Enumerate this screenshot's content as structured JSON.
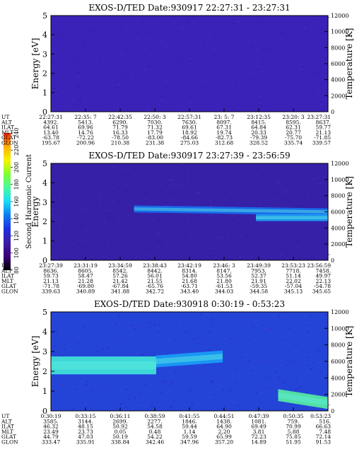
{
  "colorbar": {
    "label": "Second Harmonic Current",
    "ticks": [
      "80",
      "100",
      "120",
      "140",
      "160",
      "180",
      "200",
      "220",
      "240"
    ],
    "colors": [
      "#000000",
      "#3a007a",
      "#3c1ca8",
      "#2030e0",
      "#0e7cf2",
      "#17dcf8",
      "#48f8a0",
      "#80ff30",
      "#f4f400",
      "#ffb000",
      "#ff2800"
    ]
  },
  "row_labels": [
    "UT",
    "ALT",
    "ILAT",
    "MLT",
    "GLAT",
    "GLON"
  ],
  "chart_data": [
    {
      "type": "heatmap",
      "title": "EXOS-D/TED   Date:930917  22:27:31 - 23:27:31",
      "ylabel": "Energy [eV]",
      "ylabel_right": "Temperature [K]",
      "ylim": [
        0,
        5
      ],
      "yticks": [
        "0",
        "1",
        "2",
        "3",
        "4",
        "5"
      ],
      "y2lim": [
        0,
        12000
      ],
      "y2ticks": [
        "0",
        "2000",
        "4000",
        "6000",
        "8000",
        "10000",
        "12000"
      ],
      "background": "uniform ~100",
      "bands": [],
      "table": [
        [
          "22:27:31",
          "22:35: 7",
          "22:42:35",
          "22:50: 3",
          "22:57:31",
          "23: 5: 7",
          "23:12:35",
          "23:20: 3",
          "23:27:31"
        ],
        [
          "4392.",
          "5413.",
          "6290.",
          "7030.",
          "7630.",
          "8097.",
          "8415.",
          "8595.",
          "8637."
        ],
        [
          "64.61",
          "69.96",
          "71.79",
          "71.32",
          "69.61",
          "67.31",
          "64.84",
          "62.31",
          "59.77"
        ],
        [
          "13.40",
          "14.76",
          "16.33",
          "17.79",
          "18.92",
          "19.74",
          "20.33",
          "20.77",
          "21.13"
        ],
        [
          "-63.78",
          "-72.22",
          "-78.50",
          "-83.00",
          "-84.66",
          "-82.73",
          "-79.39",
          "-75.70",
          "-71.85"
        ],
        [
          "195.67",
          "200.96",
          "210.38",
          "231.38",
          "275.03",
          "312.68",
          "328.52",
          "335.74",
          "339.57"
        ]
      ]
    },
    {
      "type": "heatmap",
      "title": "EXOS-D/TED   Date:930917  23:27:39 - 23:56:59",
      "ylabel": "Energy",
      "ylabel_right": "Temperature [K]",
      "ylim": [
        0,
        5
      ],
      "yticks": [
        "0",
        "1",
        "2",
        "3",
        "4",
        "5"
      ],
      "y2lim": [
        0,
        12000
      ],
      "y2ticks": [
        "0",
        "2000",
        "4000",
        "6000",
        "8000",
        "10000",
        "12000"
      ],
      "background": "~100",
      "bands": [
        {
          "x": [
            0.3,
            1.0
          ],
          "y_center": [
            2.65,
            2.5
          ],
          "halfwidth": 0.18,
          "level": "~140"
        },
        {
          "x": [
            0.74,
            1.0
          ],
          "y_center": [
            2.2,
            2.2
          ],
          "halfwidth": 0.18,
          "level": "~150"
        }
      ],
      "table": [
        [
          "23:27:39",
          "23:31:19",
          "23:34:59",
          "23:38:43",
          "23:42:19",
          "23:46: 3",
          "23:49:39",
          "23:53:23",
          "23:56:59"
        ],
        [
          "8636.",
          "8605.",
          "8542.",
          "8442.",
          "8314.",
          "8147.",
          "7953.",
          "7718.",
          "7458."
        ],
        [
          "59.73",
          "58.47",
          "57.26",
          "56.01",
          "54.80",
          "53.56",
          "52.37",
          "51.14",
          "49.97"
        ],
        [
          "21.13",
          "21.28",
          "21.42",
          "21.55",
          "21.68",
          "21.80",
          "21.91",
          "22.02",
          "22.13"
        ],
        [
          "-71.78",
          "-69.80",
          "-67.84",
          "-65.76",
          "-63.71",
          "-61.53",
          "-59.35",
          "-57.04",
          "-54.78"
        ],
        [
          "339.63",
          "340.89",
          "341.88",
          "342.72",
          "343.40",
          "344.03",
          "344.58",
          "345.13",
          "345.65"
        ]
      ]
    },
    {
      "type": "heatmap",
      "title": "EXOS-D/TED   Date:930918  0:30:19 - 0:53:23",
      "ylabel": "Energy [eV]",
      "ylabel_right": "Temperature [K]",
      "ylim": [
        0,
        5
      ],
      "yticks": [
        "0",
        "1",
        "2",
        "3",
        "4",
        "5"
      ],
      "y2lim": [
        0,
        12000
      ],
      "y2ticks": [
        "0",
        "2000",
        "4000",
        "6000",
        "8000",
        "10000",
        "12000"
      ],
      "background": "~130",
      "bands": [
        {
          "x": [
            0.0,
            0.38
          ],
          "y_center": [
            2.3,
            2.3
          ],
          "halfwidth": 0.45,
          "level": "~170"
        },
        {
          "x": [
            0.38,
            0.62
          ],
          "y_center": [
            2.5,
            2.75
          ],
          "halfwidth": 0.3,
          "level": "~150"
        },
        {
          "x": [
            0.82,
            1.0
          ],
          "y_center": [
            0.8,
            0.4
          ],
          "halfwidth": 0.3,
          "level": "~180"
        }
      ],
      "table": [
        [
          "0:30:19",
          "0:33:15",
          "0:36:11",
          "0:38:59",
          "0:41:55",
          "0:44:51",
          "0:47:39",
          "0:50:35",
          "0:53:23"
        ],
        [
          "3585.",
          "3144.",
          "2699.",
          "2277.",
          "1846.",
          "1438.",
          "1081.",
          "759.",
          "516."
        ],
        [
          "46.32",
          "48.15",
          "50.92",
          "54.58",
          "59.44",
          "64.90",
          "69.49",
          "70.99",
          "66.63"
        ],
        [
          "23.49",
          "23.73",
          "0.05",
          "0.48",
          "1.14",
          "2.20",
          "3.81",
          "5.88",
          "7.48"
        ],
        [
          "44.79",
          "47.03",
          "50.19",
          "54.22",
          "59.59",
          "65.99",
          "72.23",
          "75.85",
          "72.14"
        ],
        [
          "333.47",
          "335.91",
          "338.84",
          "342.46",
          "347.96",
          "357.20",
          "14.89",
          "51.95",
          "91.53"
        ]
      ]
    }
  ]
}
